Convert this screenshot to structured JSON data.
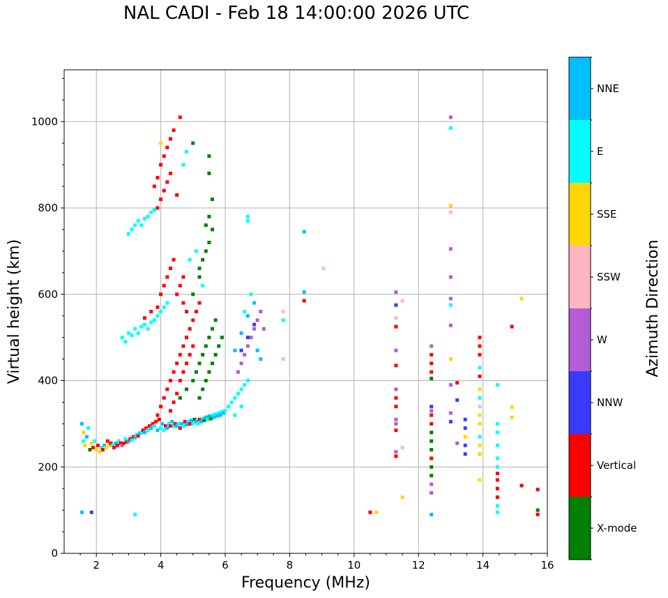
{
  "chart_data": {
    "type": "scatter",
    "title": "NAL CADI - Feb 18 14:00:00 2026 UTC",
    "xlabel": "Frequency (MHz)",
    "ylabel": "Virtual height (km)",
    "xlim": [
      1,
      16
    ],
    "ylim": [
      0,
      1120
    ],
    "xticks": [
      2,
      4,
      6,
      8,
      10,
      12,
      14,
      16
    ],
    "yticks": [
      0,
      200,
      400,
      600,
      800,
      1000
    ],
    "grid": true,
    "colorbar": {
      "label": "Azimuth Direction",
      "categories": [
        "X-mode",
        "Vertical",
        "NNW",
        "W",
        "SSW",
        "SSE",
        "E",
        "NNE"
      ],
      "colors": [
        "#008000",
        "#ff0000",
        "#3a3aff",
        "#b35cd6",
        "#ffb6c1",
        "#ffd700",
        "#00ffff",
        "#00bfff"
      ]
    },
    "points": [
      [
        1.55,
        300,
        7
      ],
      [
        1.6,
        280,
        5
      ],
      [
        1.6,
        260,
        6
      ],
      [
        1.65,
        250,
        5
      ],
      [
        1.7,
        270,
        7
      ],
      [
        1.75,
        290,
        6
      ],
      [
        1.8,
        240,
        0
      ],
      [
        1.85,
        255,
        5
      ],
      [
        1.9,
        245,
        1
      ],
      [
        1.95,
        260,
        6
      ],
      [
        2.0,
        240,
        5
      ],
      [
        2.05,
        250,
        1
      ],
      [
        2.1,
        235,
        5
      ],
      [
        2.15,
        245,
        6
      ],
      [
        2.2,
        240,
        1
      ],
      [
        2.25,
        250,
        7
      ],
      [
        2.3,
        245,
        5
      ],
      [
        2.35,
        260,
        1
      ],
      [
        2.4,
        250,
        5
      ],
      [
        2.45,
        255,
        1
      ],
      [
        2.5,
        250,
        6
      ],
      [
        2.55,
        245,
        1
      ],
      [
        2.6,
        255,
        7
      ],
      [
        2.65,
        250,
        1
      ],
      [
        2.7,
        260,
        6
      ],
      [
        2.75,
        255,
        1
      ],
      [
        2.8,
        250,
        3
      ],
      [
        2.85,
        255,
        1
      ],
      [
        2.9,
        265,
        6
      ],
      [
        2.95,
        258,
        1
      ],
      [
        3.0,
        260,
        7
      ],
      [
        3.05,
        265,
        1
      ],
      [
        3.1,
        262,
        6
      ],
      [
        3.15,
        270,
        1
      ],
      [
        3.2,
        268,
        7
      ],
      [
        3.25,
        275,
        6
      ],
      [
        3.3,
        272,
        1
      ],
      [
        3.35,
        278,
        7
      ],
      [
        3.4,
        280,
        6
      ],
      [
        3.45,
        285,
        1
      ],
      [
        3.5,
        280,
        7
      ],
      [
        3.55,
        290,
        1
      ],
      [
        3.6,
        285,
        6
      ],
      [
        3.65,
        295,
        1
      ],
      [
        3.7,
        290,
        7
      ],
      [
        3.75,
        300,
        1
      ],
      [
        3.8,
        295,
        6
      ],
      [
        3.85,
        305,
        1
      ],
      [
        3.9,
        285,
        7
      ],
      [
        3.95,
        310,
        1
      ],
      [
        4.0,
        290,
        6
      ],
      [
        4.05,
        300,
        7
      ],
      [
        4.1,
        285,
        6
      ],
      [
        4.15,
        295,
        1
      ],
      [
        4.2,
        290,
        7
      ],
      [
        4.25,
        300,
        6
      ],
      [
        4.3,
        295,
        1
      ],
      [
        4.35,
        305,
        7
      ],
      [
        4.4,
        295,
        6
      ],
      [
        4.45,
        300,
        1
      ],
      [
        4.5,
        295,
        7
      ],
      [
        4.55,
        300,
        6
      ],
      [
        4.6,
        290,
        1
      ],
      [
        4.65,
        300,
        7
      ],
      [
        4.7,
        295,
        6
      ],
      [
        4.75,
        305,
        1
      ],
      [
        4.8,
        298,
        7
      ],
      [
        4.85,
        305,
        6
      ],
      [
        4.9,
        300,
        1
      ],
      [
        4.95,
        308,
        7
      ],
      [
        5.0,
        300,
        6
      ],
      [
        5.05,
        310,
        0
      ],
      [
        5.1,
        305,
        7
      ],
      [
        5.15,
        300,
        6
      ],
      [
        5.2,
        310,
        1
      ],
      [
        5.25,
        305,
        7
      ],
      [
        5.3,
        312,
        6
      ],
      [
        5.35,
        308,
        0
      ],
      [
        5.4,
        315,
        7
      ],
      [
        5.45,
        310,
        6
      ],
      [
        5.5,
        318,
        7
      ],
      [
        5.55,
        312,
        0
      ],
      [
        5.6,
        320,
        6
      ],
      [
        5.65,
        315,
        7
      ],
      [
        5.7,
        322,
        6
      ],
      [
        5.75,
        318,
        7
      ],
      [
        5.8,
        325,
        6
      ],
      [
        5.85,
        320,
        7
      ],
      [
        5.9,
        328,
        6
      ],
      [
        5.95,
        325,
        7
      ],
      [
        3.9,
        320,
        1
      ],
      [
        4.0,
        340,
        1
      ],
      [
        4.1,
        360,
        1
      ],
      [
        4.2,
        380,
        1
      ],
      [
        4.3,
        330,
        1
      ],
      [
        4.4,
        350,
        1
      ],
      [
        4.5,
        370,
        1
      ],
      [
        4.6,
        400,
        1
      ],
      [
        4.7,
        420,
        1
      ],
      [
        4.8,
        440,
        1
      ],
      [
        4.9,
        460,
        1
      ],
      [
        5.0,
        480,
        1
      ],
      [
        4.6,
        360,
        0
      ],
      [
        4.8,
        380,
        0
      ],
      [
        5.0,
        400,
        0
      ],
      [
        5.1,
        420,
        0
      ],
      [
        5.2,
        440,
        0
      ],
      [
        5.3,
        460,
        0
      ],
      [
        5.4,
        480,
        0
      ],
      [
        5.5,
        500,
        0
      ],
      [
        5.6,
        520,
        0
      ],
      [
        5.2,
        360,
        0
      ],
      [
        5.3,
        380,
        0
      ],
      [
        5.4,
        400,
        0
      ],
      [
        5.5,
        420,
        0
      ],
      [
        5.6,
        440,
        0
      ],
      [
        5.7,
        460,
        0
      ],
      [
        5.8,
        480,
        0
      ],
      [
        5.9,
        500,
        0
      ],
      [
        5.7,
        540,
        0
      ],
      [
        4.3,
        400,
        1
      ],
      [
        4.4,
        420,
        1
      ],
      [
        4.5,
        440,
        1
      ],
      [
        4.6,
        460,
        1
      ],
      [
        4.7,
        480,
        1
      ],
      [
        4.8,
        500,
        1
      ],
      [
        4.9,
        520,
        1
      ],
      [
        5.0,
        540,
        1
      ],
      [
        5.1,
        560,
        1
      ],
      [
        5.2,
        580,
        1
      ],
      [
        6.0,
        330,
        6
      ],
      [
        6.1,
        340,
        6
      ],
      [
        6.2,
        350,
        6
      ],
      [
        6.3,
        360,
        6
      ],
      [
        6.4,
        370,
        6
      ],
      [
        6.5,
        380,
        6
      ],
      [
        6.6,
        390,
        6
      ],
      [
        6.7,
        400,
        6
      ],
      [
        6.3,
        320,
        6
      ],
      [
        6.5,
        340,
        6
      ],
      [
        6.4,
        420,
        3
      ],
      [
        6.5,
        440,
        3
      ],
      [
        6.6,
        460,
        3
      ],
      [
        6.7,
        480,
        3
      ],
      [
        6.8,
        500,
        3
      ],
      [
        6.9,
        520,
        3
      ],
      [
        7.0,
        540,
        3
      ],
      [
        6.5,
        470,
        2
      ],
      [
        6.7,
        500,
        2
      ],
      [
        6.9,
        530,
        2
      ],
      [
        6.3,
        470,
        7
      ],
      [
        6.5,
        510,
        7
      ],
      [
        6.7,
        550,
        7
      ],
      [
        6.9,
        580,
        7
      ],
      [
        7.1,
        560,
        3
      ],
      [
        7.2,
        520,
        3
      ],
      [
        6.6,
        560,
        6
      ],
      [
        6.8,
        600,
        6
      ],
      [
        7.0,
        470,
        7
      ],
      [
        7.1,
        450,
        7
      ],
      [
        2.8,
        500,
        6
      ],
      [
        2.9,
        490,
        6
      ],
      [
        3.0,
        510,
        6
      ],
      [
        3.1,
        505,
        6
      ],
      [
        3.2,
        520,
        6
      ],
      [
        3.3,
        510,
        6
      ],
      [
        3.4,
        525,
        6
      ],
      [
        3.5,
        530,
        6
      ],
      [
        3.6,
        520,
        6
      ],
      [
        3.7,
        535,
        6
      ],
      [
        3.8,
        540,
        6
      ],
      [
        3.9,
        550,
        6
      ],
      [
        4.0,
        560,
        6
      ],
      [
        4.1,
        570,
        6
      ],
      [
        4.2,
        580,
        6
      ],
      [
        3.5,
        545,
        1
      ],
      [
        3.7,
        560,
        1
      ],
      [
        3.9,
        570,
        1
      ],
      [
        4.0,
        600,
        1
      ],
      [
        4.1,
        620,
        1
      ],
      [
        4.2,
        640,
        1
      ],
      [
        4.3,
        660,
        1
      ],
      [
        4.4,
        680,
        1
      ],
      [
        4.5,
        600,
        1
      ],
      [
        4.6,
        620,
        1
      ],
      [
        4.7,
        580,
        1
      ],
      [
        4.8,
        560,
        1
      ],
      [
        5.0,
        600,
        0
      ],
      [
        5.2,
        640,
        0
      ],
      [
        5.3,
        680,
        0
      ],
      [
        5.4,
        700,
        0
      ],
      [
        5.5,
        720,
        0
      ],
      [
        5.6,
        750,
        0
      ],
      [
        5.4,
        760,
        0
      ],
      [
        5.5,
        780,
        0
      ],
      [
        5.2,
        660,
        0
      ],
      [
        5.1,
        700,
        6
      ],
      [
        4.9,
        680,
        6
      ],
      [
        5.3,
        620,
        6
      ],
      [
        4.7,
        640,
        1
      ],
      [
        3.0,
        740,
        6
      ],
      [
        3.1,
        750,
        6
      ],
      [
        3.2,
        760,
        6
      ],
      [
        3.3,
        770,
        6
      ],
      [
        3.4,
        760,
        6
      ],
      [
        3.5,
        775,
        6
      ],
      [
        3.6,
        780,
        6
      ],
      [
        3.7,
        790,
        6
      ],
      [
        3.8,
        795,
        6
      ],
      [
        3.9,
        800,
        1
      ],
      [
        4.0,
        820,
        1
      ],
      [
        4.1,
        840,
        1
      ],
      [
        4.2,
        860,
        1
      ],
      [
        4.3,
        880,
        1
      ],
      [
        4.0,
        900,
        1
      ],
      [
        4.1,
        920,
        1
      ],
      [
        4.2,
        940,
        1
      ],
      [
        4.3,
        960,
        1
      ],
      [
        4.4,
        980,
        1
      ],
      [
        4.6,
        1010,
        1
      ],
      [
        3.8,
        850,
        1
      ],
      [
        3.9,
        870,
        1
      ],
      [
        4.0,
        950,
        5
      ],
      [
        4.5,
        830,
        1
      ],
      [
        4.7,
        900,
        6
      ],
      [
        4.8,
        930,
        6
      ],
      [
        5.0,
        950,
        0
      ],
      [
        5.5,
        920,
        0
      ],
      [
        5.5,
        880,
        0
      ],
      [
        5.6,
        820,
        0
      ],
      [
        6.7,
        770,
        6
      ],
      [
        6.7,
        780,
        6
      ],
      [
        7.8,
        540,
        6
      ],
      [
        7.8,
        560,
        4
      ],
      [
        7.8,
        450,
        4
      ],
      [
        8.45,
        605,
        7
      ],
      [
        8.45,
        585,
        1
      ],
      [
        8.45,
        745,
        7
      ],
      [
        9.05,
        660,
        4
      ],
      [
        10.5,
        95,
        1
      ],
      [
        10.7,
        95,
        5
      ],
      [
        11.3,
        605,
        3
      ],
      [
        11.3,
        575,
        2
      ],
      [
        11.3,
        545,
        4
      ],
      [
        11.3,
        525,
        1
      ],
      [
        11.3,
        470,
        3
      ],
      [
        11.3,
        435,
        1
      ],
      [
        11.3,
        380,
        3
      ],
      [
        11.3,
        360,
        1
      ],
      [
        11.3,
        340,
        1
      ],
      [
        11.3,
        310,
        3
      ],
      [
        11.3,
        300,
        3
      ],
      [
        11.3,
        285,
        1
      ],
      [
        11.3,
        235,
        3
      ],
      [
        11.3,
        225,
        1
      ],
      [
        11.5,
        245,
        4
      ],
      [
        11.5,
        585,
        4
      ],
      [
        11.5,
        130,
        5
      ],
      [
        12.4,
        480,
        3
      ],
      [
        12.4,
        460,
        1
      ],
      [
        12.4,
        440,
        1
      ],
      [
        12.4,
        420,
        1
      ],
      [
        12.4,
        405,
        0
      ],
      [
        12.4,
        340,
        2
      ],
      [
        12.4,
        320,
        1
      ],
      [
        12.4,
        300,
        1
      ],
      [
        12.4,
        280,
        0
      ],
      [
        12.4,
        260,
        0
      ],
      [
        12.4,
        240,
        0
      ],
      [
        12.4,
        220,
        1
      ],
      [
        12.4,
        200,
        0
      ],
      [
        12.4,
        180,
        0
      ],
      [
        12.4,
        160,
        3
      ],
      [
        12.4,
        140,
        3
      ],
      [
        12.4,
        90,
        7
      ],
      [
        12.4,
        330,
        3
      ],
      [
        13.0,
        1010,
        3
      ],
      [
        13.0,
        985,
        6
      ],
      [
        13.0,
        805,
        5
      ],
      [
        13.0,
        790,
        4
      ],
      [
        13.0,
        705,
        3
      ],
      [
        13.0,
        640,
        3
      ],
      [
        13.0,
        590,
        3
      ],
      [
        13.0,
        575,
        6
      ],
      [
        13.0,
        528,
        3
      ],
      [
        13.0,
        450,
        5
      ],
      [
        13.0,
        390,
        3
      ],
      [
        13.0,
        325,
        3
      ],
      [
        13.0,
        305,
        2
      ],
      [
        13.2,
        395,
        1
      ],
      [
        13.2,
        355,
        2
      ],
      [
        13.2,
        255,
        3
      ],
      [
        13.45,
        310,
        2
      ],
      [
        13.45,
        290,
        2
      ],
      [
        13.45,
        270,
        5
      ],
      [
        13.45,
        250,
        2
      ],
      [
        13.45,
        230,
        2
      ],
      [
        13.9,
        500,
        1
      ],
      [
        13.9,
        480,
        1
      ],
      [
        13.9,
        460,
        1
      ],
      [
        13.9,
        430,
        6
      ],
      [
        13.9,
        410,
        1
      ],
      [
        13.9,
        380,
        5
      ],
      [
        13.9,
        360,
        6
      ],
      [
        13.9,
        340,
        4
      ],
      [
        13.9,
        320,
        5
      ],
      [
        13.9,
        300,
        5
      ],
      [
        13.9,
        270,
        6
      ],
      [
        13.9,
        250,
        5
      ],
      [
        13.9,
        230,
        5
      ],
      [
        13.9,
        170,
        5
      ],
      [
        14.45,
        390,
        6
      ],
      [
        14.45,
        300,
        6
      ],
      [
        14.45,
        280,
        6
      ],
      [
        14.45,
        250,
        6
      ],
      [
        14.45,
        220,
        6
      ],
      [
        14.45,
        200,
        6
      ],
      [
        14.45,
        185,
        1
      ],
      [
        14.45,
        170,
        1
      ],
      [
        14.45,
        150,
        1
      ],
      [
        14.45,
        130,
        1
      ],
      [
        14.45,
        110,
        6
      ],
      [
        14.45,
        95,
        6
      ],
      [
        14.9,
        525,
        1
      ],
      [
        14.9,
        338,
        5
      ],
      [
        14.9,
        315,
        5
      ],
      [
        15.2,
        590,
        5
      ],
      [
        15.2,
        157,
        1
      ],
      [
        15.7,
        148,
        1
      ],
      [
        15.7,
        100,
        0
      ],
      [
        15.7,
        90,
        1
      ],
      [
        1.55,
        95,
        7
      ],
      [
        1.85,
        95,
        2
      ],
      [
        3.2,
        90,
        6
      ]
    ]
  }
}
